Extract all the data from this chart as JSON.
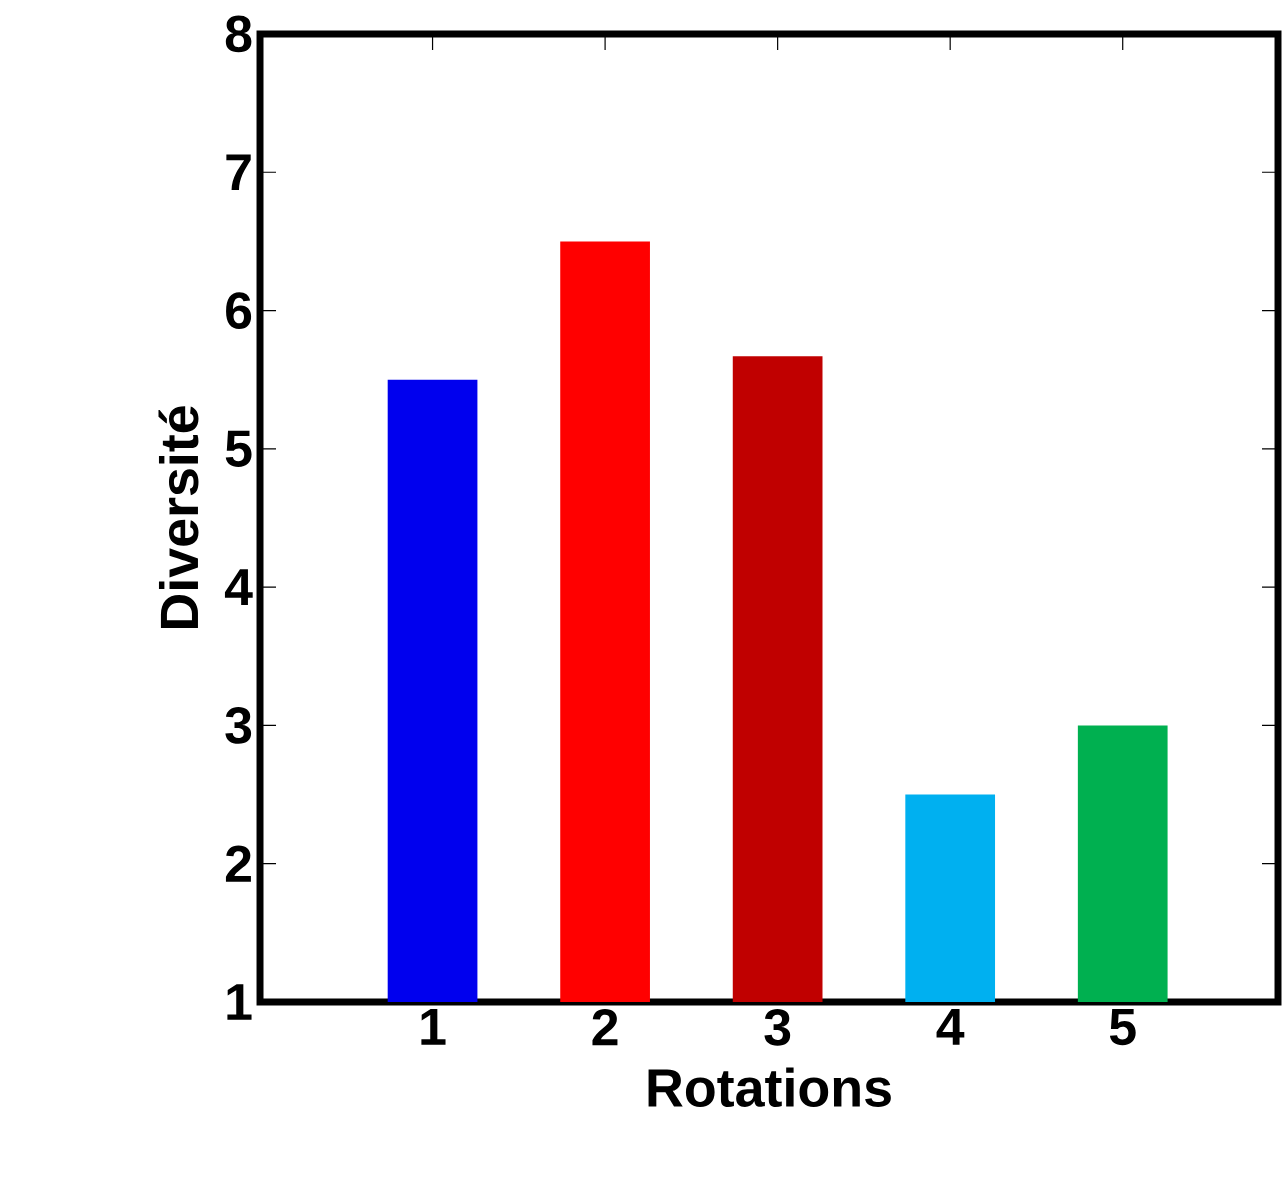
{
  "chart_data": {
    "type": "bar",
    "xlabel": "Rotations",
    "ylabel": "Diversité",
    "categories": [
      "1",
      "2",
      "3",
      "4",
      "5"
    ],
    "values": [
      5.5,
      6.5,
      5.67,
      2.5,
      3.0
    ],
    "colors": [
      "#0000ee",
      "#ff0000",
      "#c00000",
      "#00b0f0",
      "#00b050"
    ],
    "ylim": [
      1,
      8
    ],
    "yticks": [
      1,
      2,
      3,
      4,
      5,
      6,
      7,
      8
    ]
  }
}
